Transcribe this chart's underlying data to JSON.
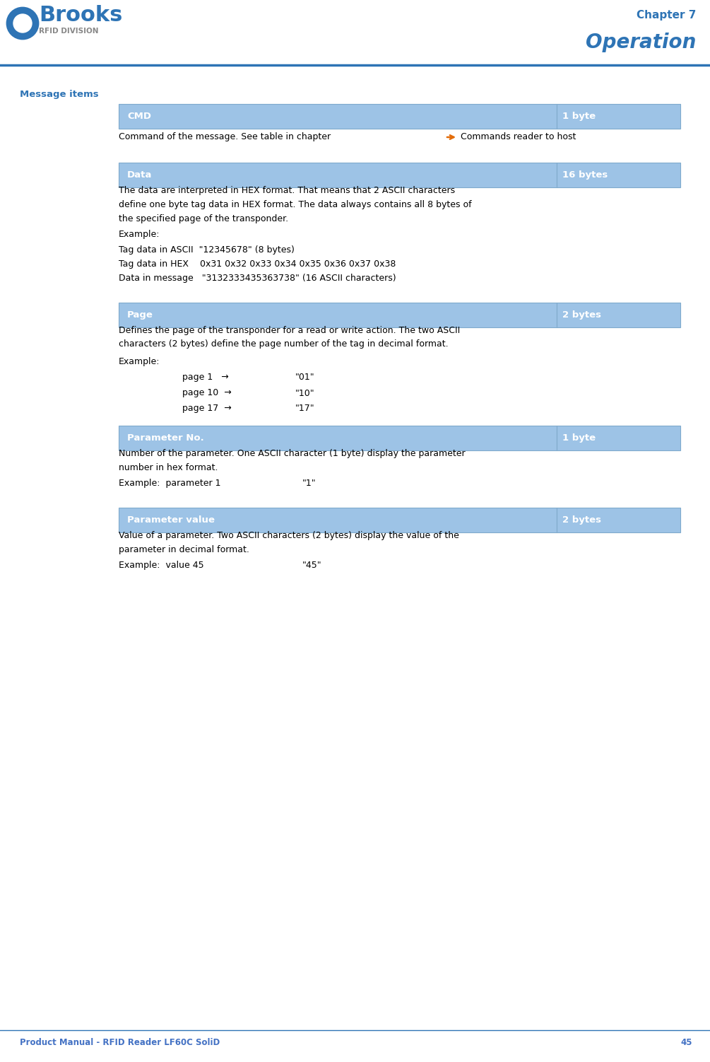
{
  "page_width": 10.05,
  "page_height": 15.02,
  "bg_color": "#ffffff",
  "header_blue": "#2E74B5",
  "header_light_blue": "#9DC3E6",
  "table_header_bg": "#9DC3E6",
  "table_border": "#7FAACC",
  "chapter_text": "Chapter 7",
  "operation_text": "Operation",
  "footer_text": "Product Manual - RFID Reader LF60C SoliD",
  "footer_page": "45",
  "section_title": "Message items",
  "divider_color": "#2E74B5",
  "orange_arrow": "#E36C09",
  "body_text_color": "#000000",
  "section_title_color": "#2E74B5",
  "table_rows": [
    {
      "label": "CMD",
      "bytes": "1 byte"
    },
    {
      "label": "Data",
      "bytes": "16 bytes"
    },
    {
      "label": "Page",
      "bytes": "2 bytes"
    },
    {
      "label": "Parameter No.",
      "bytes": "1 byte"
    },
    {
      "label": "Parameter value",
      "bytes": "2 bytes"
    }
  ]
}
